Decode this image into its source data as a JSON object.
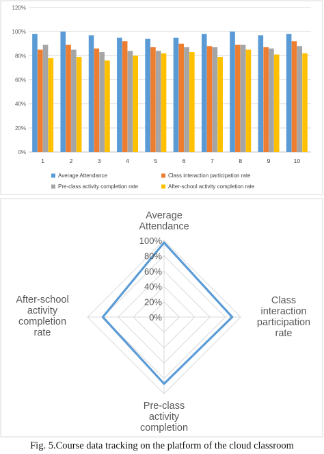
{
  "caption": "Fig. 5.Course data tracking on the platform of the cloud classroom",
  "colors": {
    "average_attendance": "#5b9bd5",
    "class_interaction": "#ed7d31",
    "preclass_activity": "#a5a5a5",
    "afterschool_activity": "#ffc000",
    "radar_series": "#5b9bd5",
    "grid": "#d9d9d9"
  },
  "chart_data": [
    {
      "type": "bar",
      "title": "",
      "xlabel": "",
      "ylabel": "",
      "ylim": [
        0,
        120
      ],
      "y_ticks": [
        "0%",
        "20%",
        "40%",
        "60%",
        "80%",
        "100%",
        "120%"
      ],
      "categories": [
        "1",
        "2",
        "3",
        "4",
        "5",
        "6",
        "7",
        "8",
        "9",
        "10"
      ],
      "grid": true,
      "legend_position": "bottom",
      "series": [
        {
          "name": "Average Attendance",
          "values": [
            98,
            100,
            97,
            95,
            94,
            95,
            98,
            100,
            97,
            98
          ]
        },
        {
          "name": "Class interaction participation rate",
          "values": [
            85,
            89,
            86,
            92,
            87,
            90,
            88,
            89,
            87,
            92
          ]
        },
        {
          "name": "Pre-class activity completion rate",
          "values": [
            89,
            85,
            83,
            84,
            84,
            87,
            87,
            89,
            86,
            88
          ]
        },
        {
          "name": "After-school activity completion rate",
          "values": [
            78,
            79,
            76,
            80,
            82,
            83,
            79,
            85,
            81,
            82
          ]
        }
      ]
    },
    {
      "type": "radar",
      "axes": [
        "Average Attendance",
        "Class interaction participation rate",
        "Pre-class activity completion",
        "After-school activity completion rate"
      ],
      "r_ticks": [
        "0%",
        "20%",
        "40%",
        "60%",
        "80%",
        "100%"
      ],
      "rlim": [
        0,
        100
      ],
      "grid": true,
      "series": [
        {
          "values": [
            97,
            89,
            87,
            80
          ]
        }
      ]
    }
  ]
}
